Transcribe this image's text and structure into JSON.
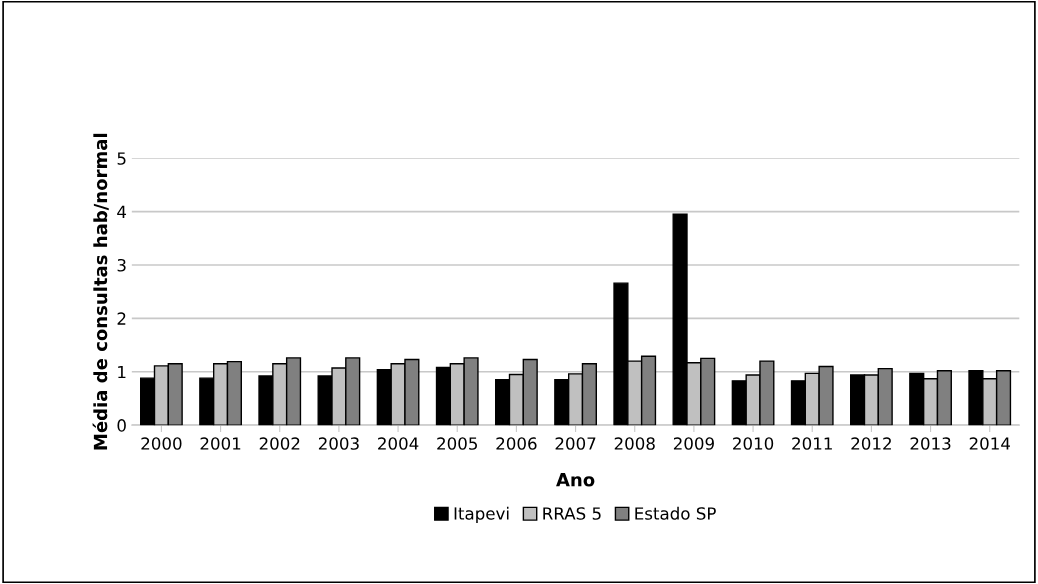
{
  "chart_data": {
    "type": "bar",
    "xlabel": "Ano",
    "ylabel": "Média de consultas hab/normal",
    "categories": [
      "2000",
      "2001",
      "2002",
      "2003",
      "2004",
      "2005",
      "2006",
      "2007",
      "2008",
      "2009",
      "2010",
      "2011",
      "2012",
      "2013",
      "2014"
    ],
    "series": [
      {
        "name": "Itapevi",
        "color": "#000000",
        "values": [
          0.88,
          0.88,
          0.92,
          0.92,
          1.04,
          1.08,
          0.85,
          0.85,
          2.66,
          3.95,
          0.83,
          0.83,
          0.94,
          0.97,
          1.02
        ]
      },
      {
        "name": "RRAS 5",
        "color": "#c0c0c0",
        "values": [
          1.11,
          1.15,
          1.15,
          1.07,
          1.15,
          1.15,
          0.95,
          0.96,
          1.2,
          1.17,
          0.94,
          0.97,
          0.94,
          0.87,
          0.87
        ]
      },
      {
        "name": "Estado SP",
        "color": "#808080",
        "values": [
          1.15,
          1.19,
          1.26,
          1.26,
          1.23,
          1.26,
          1.23,
          1.15,
          1.29,
          1.25,
          1.2,
          1.1,
          1.06,
          1.02,
          1.02
        ]
      }
    ],
    "ylim": [
      0,
      5
    ],
    "yticks": [
      0,
      1,
      2,
      3,
      4,
      5
    ],
    "grid": "y",
    "legend": "bottom"
  }
}
